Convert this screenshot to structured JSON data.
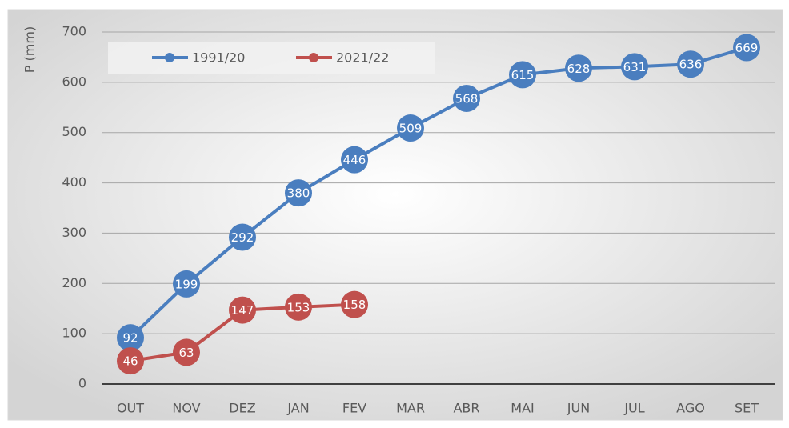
{
  "chart_data": {
    "type": "line",
    "y_label": "P (mm)",
    "categories": [
      "OUT",
      "NOV",
      "DEZ",
      "JAN",
      "FEV",
      "MAR",
      "ABR",
      "MAI",
      "JUN",
      "JUL",
      "AGO",
      "SET"
    ],
    "series": [
      {
        "name": "1991/20",
        "color": "#4a7ebf",
        "values": [
          92,
          199,
          292,
          380,
          446,
          509,
          568,
          615,
          628,
          631,
          636,
          669
        ]
      },
      {
        "name": "2021/22",
        "color": "#c0504d",
        "values": [
          46,
          63,
          147,
          153,
          158,
          null,
          null,
          null,
          null,
          null,
          null,
          null
        ]
      }
    ],
    "ylim": [
      0,
      700
    ],
    "yticks": [
      0,
      100,
      200,
      300,
      400,
      500,
      600,
      700
    ],
    "grid": true
  }
}
